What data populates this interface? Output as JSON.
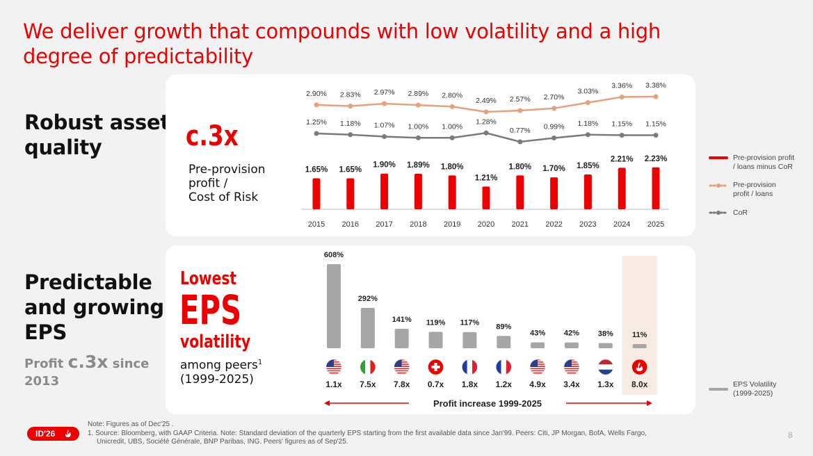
{
  "title": "We deliver growth that compounds with low volatility and a high degree of predictability",
  "section1": {
    "title_line1": "Robust asset",
    "title_line2": "quality",
    "big": "c.3x",
    "caption_line1": "Pre-provision",
    "caption_line2": "profit /",
    "caption_line3": "Cost of Risk"
  },
  "section2": {
    "title_line1": "Predictable",
    "title_line2": "and growing",
    "title_line3": "EPS",
    "sub_prefix": "Profit ",
    "sub_highlight": "c.3x",
    "sub_suffix": " since",
    "sub_line2": "2013",
    "big_line1": "Lowest",
    "big_line2": "EPS",
    "big_line3": "volatility",
    "caption_line1": "among peers",
    "caption_sup": "1",
    "caption_line2": "(1999-2025)"
  },
  "chart_data": [
    {
      "type": "bar+line",
      "x": [
        "2015",
        "2016",
        "2017",
        "2018",
        "2019",
        "2020",
        "2021",
        "2022",
        "2023",
        "2024",
        "2025"
      ],
      "series": [
        {
          "name": "Pre-provision profit / loans",
          "type": "line",
          "color": "#e6a07a",
          "values": [
            2.9,
            2.83,
            2.97,
            2.89,
            2.8,
            2.49,
            2.57,
            2.7,
            3.03,
            3.36,
            3.38
          ],
          "labels": [
            "2.90%",
            "2.83%",
            "2.97%",
            "2.89%",
            "2.80%",
            "2.49%",
            "2.57%",
            "2.70%",
            "3.03%",
            "3.36%",
            "3.38%"
          ]
        },
        {
          "name": "CoR",
          "type": "line",
          "color": "#7a7a7a",
          "values": [
            1.25,
            1.18,
            1.07,
            1.0,
            1.0,
            1.28,
            0.77,
            0.99,
            1.18,
            1.15,
            1.15
          ],
          "labels": [
            "1.25%",
            "1.18%",
            "1.07%",
            "1.00%",
            "1.00%",
            "1.28%",
            "0.77%",
            "0.99%",
            "1.18%",
            "1.15%",
            "1.15%"
          ]
        },
        {
          "name": "Pre-provision profit / loans minus CoR",
          "type": "bar",
          "color": "#ec0000",
          "values": [
            1.65,
            1.65,
            1.9,
            1.89,
            1.8,
            1.21,
            1.8,
            1.7,
            1.85,
            2.21,
            2.23
          ],
          "labels": [
            "1.65%",
            "1.65%",
            "1.90%",
            "1.89%",
            "1.80%",
            "1.21%",
            "1.80%",
            "1.70%",
            "1.85%",
            "2.21%",
            "2.23%"
          ]
        }
      ],
      "legend": [
        {
          "label": "Pre-provision profit / loans minus CoR",
          "line1": "Pre-provision profit",
          "line2": "/ loans minus CoR",
          "color": "#ec0000",
          "style": "solid"
        },
        {
          "label": "Pre-provision profit / loans",
          "line1": "Pre-provision",
          "line2": "profit / loans",
          "color": "#e6a07a",
          "style": "dotted"
        },
        {
          "label": "CoR",
          "line1": "CoR",
          "line2": "",
          "color": "#7a7a7a",
          "style": "dotted"
        }
      ]
    },
    {
      "type": "bar",
      "title": "EPS Volatility (1999-2025)",
      "series": [
        {
          "name": "EPS Volatility (1999-2025)",
          "color": "#a6a6a6",
          "values": [
            608,
            292,
            141,
            119,
            117,
            89,
            43,
            42,
            38,
            11
          ],
          "labels": [
            "608%",
            "292%",
            "141%",
            "119%",
            "117%",
            "89%",
            "43%",
            "42%",
            "38%",
            "11%"
          ]
        }
      ],
      "flags": [
        "us",
        "it",
        "us",
        "ch",
        "fr",
        "fr",
        "us",
        "us",
        "nl",
        "santander"
      ],
      "profit_multiples": [
        "1.1x",
        "7.5x",
        "7.8x",
        "0.7x",
        "1.8x",
        "1.2x",
        "4.9x",
        "3.4x",
        "1.3x",
        "8.0x"
      ],
      "highlight_index": 9,
      "axis_label": "Profit increase 1999-2025",
      "legend": [
        {
          "line1": "EPS Volatility",
          "line2": "(1999-2025)",
          "color": "#a6a6a6"
        }
      ]
    }
  ],
  "notes": {
    "line1": "Note: Figures as of Dec'25 .",
    "line2": "1.  Source: Bloomberg, with GAAP Criteria. Note: Standard deviation of the quarterly EPS starting from the first available data since Jan'99. Peers: Citi, JP Morgan, BofA, Wells Fargo,",
    "line3": "Unicredit, UBS, Société Générale, BNP Paribas, ING. Peers' figures as of Sep'25."
  },
  "badge": "ID'26",
  "page_number": "8"
}
